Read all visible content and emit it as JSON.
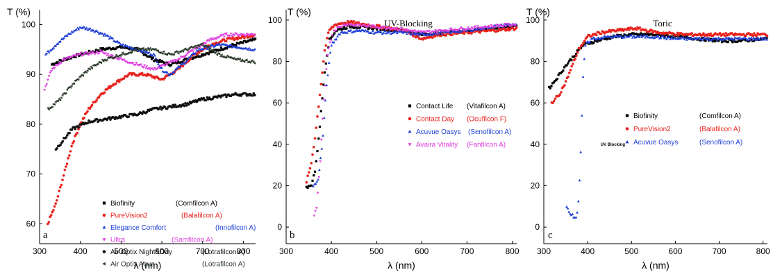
{
  "chart_data": [
    {
      "type": "scatter",
      "panel_label": "a",
      "title": "",
      "ylabel": "T (%)",
      "xlabel": "λ (nm)",
      "xlim": [
        300,
        830
      ],
      "ylim": [
        56,
        103
      ],
      "xticks": [
        300,
        400,
        500,
        600,
        700,
        800
      ],
      "yticks": [
        60,
        70,
        80,
        90,
        100
      ],
      "legend_position": "bottom-center",
      "series": [
        {
          "name": "Biofinity",
          "material": "(Comfilcon A)",
          "color": "#000000",
          "marker": "square",
          "x_range": [
            330,
            830
          ],
          "x": [
            330,
            360,
            400,
            450,
            500,
            540,
            580,
            620,
            660,
            700,
            740,
            780,
            830
          ],
          "y": [
            92,
            93,
            94,
            95,
            95.5,
            95,
            93,
            92,
            93,
            94,
            95,
            96,
            97
          ]
        },
        {
          "name": "PureVision2",
          "material": "(Balafilcon A)",
          "color": "#e8221c",
          "marker": "circle",
          "x_range": [
            320,
            830
          ],
          "x": [
            320,
            340,
            360,
            380,
            400,
            420,
            450,
            480,
            520,
            560,
            600,
            640,
            680,
            720,
            760,
            800,
            830
          ],
          "y": [
            60,
            64,
            70,
            76,
            80,
            83,
            86,
            88,
            90,
            90,
            89,
            91,
            94,
            96,
            97,
            97.5,
            98
          ]
        },
        {
          "name": "Elegance Comfort",
          "material": "(Innofilcon A)",
          "color": "#1f3fd6",
          "marker": "triangle-up",
          "x_range": [
            315,
            830
          ],
          "x": [
            315,
            340,
            370,
            400,
            430,
            460,
            500,
            540,
            580,
            600,
            620,
            650,
            690,
            740,
            790,
            830
          ],
          "y": [
            94,
            96,
            98,
            99.5,
            99,
            98,
            96,
            95,
            94,
            91,
            90,
            92,
            95,
            96,
            95.5,
            95
          ]
        },
        {
          "name": "Ultra",
          "material": "(Samfilcon A)",
          "color": "#e040e0",
          "marker": "triangle-down",
          "x_range": [
            312,
            830
          ],
          "x": [
            312,
            330,
            360,
            400,
            450,
            500,
            540,
            580,
            610,
            640,
            680,
            720,
            760,
            800,
            830
          ],
          "y": [
            87,
            91,
            93,
            94,
            94.5,
            93,
            92,
            91,
            92,
            93,
            95,
            97,
            98,
            98,
            98
          ]
        },
        {
          "name": "Air Optix Night&Day",
          "material": "(Lotrafilcon A)",
          "color": "#111111",
          "marker": "circle",
          "x_range": [
            340,
            830
          ],
          "x": [
            340,
            380,
            420,
            460,
            500,
            540,
            580,
            620,
            660,
            700,
            740,
            780,
            830
          ],
          "y": [
            75,
            79,
            80.5,
            81,
            81.5,
            82,
            83,
            83.5,
            84,
            85,
            85.5,
            86,
            86
          ]
        },
        {
          "name": "Air Optix Aqua",
          "material": "(Lotrafilcon A)",
          "color": "#2a3a2a",
          "marker": "triangle-left",
          "x_range": [
            320,
            830
          ],
          "x": [
            320,
            350,
            380,
            420,
            460,
            500,
            540,
            580,
            620,
            660,
            700,
            740,
            780,
            830
          ],
          "y": [
            83,
            85,
            88,
            91,
            93,
            94,
            95,
            95,
            94,
            95,
            96,
            94,
            93,
            92.5
          ]
        }
      ]
    },
    {
      "type": "scatter",
      "panel_label": "b",
      "title": "UV-Blocking",
      "ylabel": "T (%)",
      "xlabel": "λ (nm)",
      "xlim": [
        300,
        810
      ],
      "ylim": [
        -8,
        105
      ],
      "xticks": [
        300,
        400,
        500,
        600,
        700,
        800
      ],
      "yticks": [
        0,
        20,
        40,
        60,
        80,
        100
      ],
      "legend_position": "center-right",
      "series": [
        {
          "name": "Contact Life",
          "material": "(Vitafilcon A)",
          "color": "#000000",
          "marker": "square",
          "x_range": [
            345,
            810
          ],
          "x": [
            345,
            355,
            365,
            375,
            385,
            395,
            410,
            440,
            500,
            560,
            600,
            640,
            700,
            760,
            810
          ],
          "y": [
            19,
            20,
            28,
            50,
            75,
            90,
            95,
            97,
            96,
            95,
            93,
            94,
            95,
            96,
            97
          ]
        },
        {
          "name": "Contact Day",
          "material": "(Ocufilcon F)",
          "color": "#e8221c",
          "marker": "circle",
          "x_range": [
            345,
            810
          ],
          "x": [
            345,
            355,
            365,
            375,
            385,
            395,
            410,
            440,
            500,
            560,
            600,
            640,
            700,
            760,
            810
          ],
          "y": [
            22,
            30,
            45,
            65,
            85,
            95,
            98,
            99,
            97,
            95,
            91,
            93,
            94,
            95,
            96
          ]
        },
        {
          "name": "Acuvue Oasys",
          "material": "(Senofilcon A)",
          "color": "#1f3fd6",
          "marker": "triangle-up",
          "x_range": [
            360,
            810
          ],
          "x": [
            360,
            370,
            380,
            390,
            400,
            420,
            460,
            500,
            560,
            600,
            650,
            700,
            760,
            810
          ],
          "y": [
            20,
            22,
            40,
            70,
            88,
            94,
            95,
            94,
            94,
            93,
            94,
            95,
            97,
            98
          ]
        },
        {
          "name": "Avaira Vitality",
          "material": "(Fanfilcon A)",
          "color": "#e040e0",
          "marker": "triangle-down",
          "x_range": [
            362,
            810
          ],
          "x": [
            362,
            368,
            375,
            383,
            392,
            405,
            430,
            480,
            540,
            600,
            650,
            700,
            760,
            810
          ],
          "y": [
            5,
            10,
            30,
            60,
            85,
            95,
            98,
            97,
            96,
            94,
            95,
            96,
            97,
            98
          ]
        }
      ]
    },
    {
      "type": "scatter",
      "panel_label": "c",
      "title": "Toric",
      "ylabel": "T (%)",
      "xlabel": "λ (nm)",
      "xlim": [
        300,
        810
      ],
      "ylim": [
        -8,
        105
      ],
      "xticks": [
        300,
        400,
        500,
        600,
        700,
        800
      ],
      "yticks": [
        0,
        20,
        40,
        60,
        80,
        100
      ],
      "legend_position": "center-right",
      "legend_note": "UV Blocking",
      "series": [
        {
          "name": "Biofinity",
          "material": "(Comfilcon A)",
          "color": "#000000",
          "marker": "square",
          "x_range": [
            312,
            810
          ],
          "x": [
            312,
            330,
            350,
            370,
            390,
            420,
            460,
            500,
            550,
            600,
            650,
            700,
            750,
            810
          ],
          "y": [
            67,
            72,
            78,
            83,
            88,
            90,
            92,
            93,
            93,
            92,
            91,
            90,
            90,
            91
          ]
        },
        {
          "name": "PureVision2",
          "material": "(Balafilcon A)",
          "color": "#e8221c",
          "marker": "circle",
          "x_range": [
            318,
            810
          ],
          "x": [
            318,
            335,
            350,
            365,
            380,
            400,
            430,
            470,
            510,
            560,
            620,
            680,
            740,
            810
          ],
          "y": [
            60,
            64,
            70,
            78,
            86,
            92,
            94,
            95,
            96,
            94,
            93,
            93,
            93,
            93
          ]
        },
        {
          "name": "Acuvue Oasys",
          "material": "(Senofilcon A)",
          "color": "#1f3fd6",
          "marker": "triangle-up",
          "x_range": [
            352,
            810
          ],
          "x": [
            352,
            360,
            368,
            375,
            380,
            385,
            390,
            395,
            410,
            450,
            500,
            550,
            600,
            650,
            700,
            760,
            810
          ],
          "y": [
            10,
            7,
            5,
            5,
            15,
            40,
            75,
            88,
            91,
            92,
            92,
            92,
            91,
            91,
            91,
            91,
            91
          ]
        }
      ]
    }
  ]
}
